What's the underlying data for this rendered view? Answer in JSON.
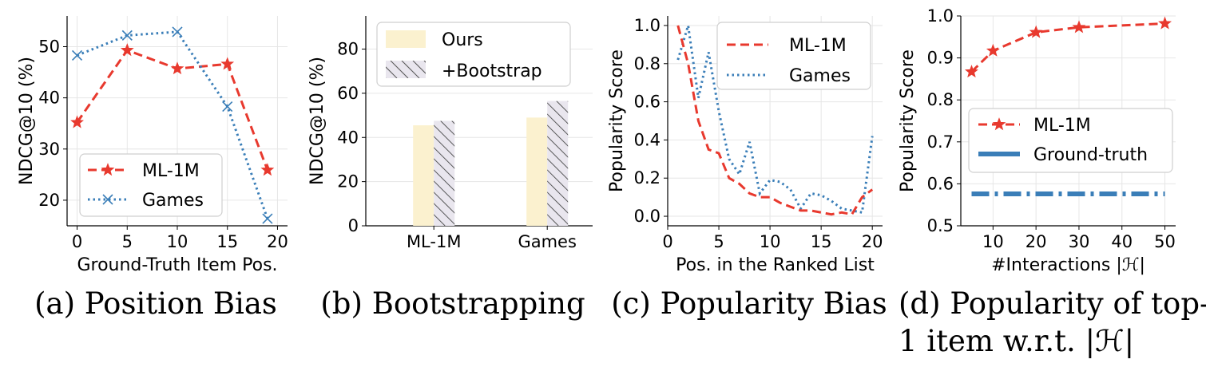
{
  "colors": {
    "red": "#e8392e",
    "blue": "#3a7eb8",
    "bar_ours": "#fbf1cf",
    "bar_boot": "#e9e6ee"
  },
  "chart_data": [
    {
      "id": "a",
      "type": "line",
      "caption": "(a) Position Bias",
      "xlabel": "Ground-Truth Item Pos.",
      "ylabel": "NDCG@10 (%)",
      "xlim": [
        -1,
        21
      ],
      "ylim": [
        15,
        56
      ],
      "xticks": [
        0,
        5,
        10,
        15,
        20
      ],
      "yticks": [
        20,
        30,
        40,
        50
      ],
      "series": [
        {
          "name": "ML-1M",
          "style": "dashed",
          "marker": "star",
          "x": [
            0,
            5,
            10,
            15,
            19
          ],
          "values": [
            35.2,
            49.3,
            45.7,
            46.6,
            25.9
          ]
        },
        {
          "name": "Games",
          "style": "dotted",
          "marker": "x",
          "x": [
            0,
            5,
            10,
            15,
            19
          ],
          "values": [
            48.3,
            52.2,
            52.9,
            38.3,
            16.4
          ]
        }
      ],
      "legend": "lower-left"
    },
    {
      "id": "b",
      "type": "bar",
      "caption": "(b) Bootstrapping",
      "xlabel": "",
      "ylabel": "NDCG@10 (%)",
      "ylim": [
        0,
        95
      ],
      "yticks": [
        0,
        20,
        40,
        60,
        80
      ],
      "categories": [
        "ML-1M",
        "Games"
      ],
      "series": [
        {
          "name": "Ours",
          "values": [
            45.5,
            49.0
          ]
        },
        {
          "name": "+Bootstrap",
          "values": [
            47.5,
            56.5
          ]
        }
      ],
      "legend": "top-left"
    },
    {
      "id": "c",
      "type": "line",
      "caption": "(c) Popularity Bias",
      "xlabel": "Pos. in the Ranked List",
      "ylabel": "Popularity Score",
      "xlim": [
        0,
        21
      ],
      "ylim": [
        -0.05,
        1.05
      ],
      "xticks": [
        0,
        5,
        10,
        15,
        20
      ],
      "yticks": [
        0.0,
        0.2,
        0.4,
        0.6,
        0.8,
        1.0
      ],
      "series": [
        {
          "name": "ML-1M",
          "style": "dashed",
          "x": [
            1,
            2,
            3,
            4,
            5,
            6,
            7,
            8,
            9,
            10,
            11,
            12,
            13,
            14,
            15,
            16,
            17,
            18,
            19,
            20
          ],
          "values": [
            1.0,
            0.8,
            0.5,
            0.35,
            0.33,
            0.2,
            0.17,
            0.12,
            0.1,
            0.1,
            0.07,
            0.05,
            0.03,
            0.03,
            0.02,
            0.01,
            0.02,
            0.01,
            0.1,
            0.14
          ]
        },
        {
          "name": "Games",
          "style": "dotted",
          "x": [
            1,
            2,
            3,
            4,
            5,
            6,
            7,
            8,
            9,
            10,
            11,
            12,
            13,
            14,
            15,
            16,
            17,
            18,
            19,
            20
          ],
          "values": [
            0.82,
            1.0,
            0.62,
            0.86,
            0.55,
            0.3,
            0.22,
            0.39,
            0.12,
            0.19,
            0.18,
            0.14,
            0.04,
            0.12,
            0.11,
            0.08,
            0.04,
            0.03,
            0.02,
            0.42
          ]
        }
      ],
      "legend": "top-right"
    },
    {
      "id": "d",
      "type": "line",
      "caption_line1": "(d) Popularity of top-",
      "caption_line2": "1 item w.r.t. |ℋ|",
      "xlabel": "#Interactions |ℋ|",
      "ylabel": "Popularity Score",
      "xlim": [
        2.5,
        52.5
      ],
      "ylim": [
        0.5,
        1.0
      ],
      "xticks": [
        10,
        20,
        30,
        40,
        50
      ],
      "yticks": [
        0.5,
        0.6,
        0.7,
        0.8,
        0.9,
        1.0
      ],
      "series": [
        {
          "name": "ML-1M",
          "style": "dashed",
          "marker": "star",
          "x": [
            5,
            10,
            20,
            30,
            50
          ],
          "values": [
            0.867,
            0.917,
            0.961,
            0.973,
            0.982
          ]
        },
        {
          "name": "Ground-truth",
          "style": "dashdot",
          "x": [
            5,
            50
          ],
          "values": [
            0.576,
            0.576
          ]
        }
      ],
      "legend": "middle-left"
    }
  ]
}
